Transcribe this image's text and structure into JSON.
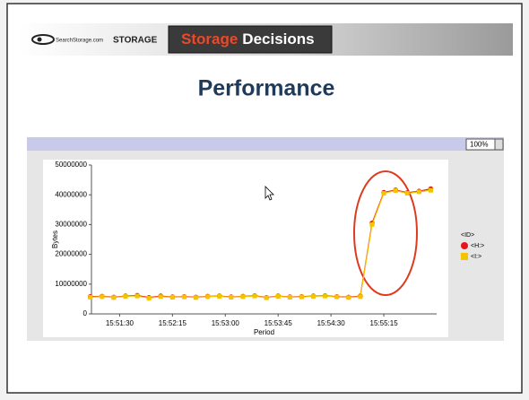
{
  "header": {
    "logo_small": "SearchStorage.com",
    "logo": "STORAGE",
    "brand_1": "Storage",
    "brand_2": "Decisions"
  },
  "title": "Performance",
  "zoom": "100%",
  "chart_data": {
    "type": "line",
    "xlabel": "Period",
    "ylabel": "Bytes",
    "legend_title": "<ID>",
    "legend": "right",
    "x": [
      "15:51:05",
      "15:51:15",
      "15:51:25",
      "15:51:35",
      "15:51:45",
      "15:51:55",
      "15:52:05",
      "15:52:15",
      "15:52:25",
      "15:52:35",
      "15:52:45",
      "15:52:55",
      "15:53:05",
      "15:53:15",
      "15:53:25",
      "15:53:35",
      "15:53:45",
      "15:53:55",
      "15:54:05",
      "15:54:15",
      "15:54:25",
      "15:54:35",
      "15:54:45",
      "15:54:55",
      "15:55:05",
      "15:55:15",
      "15:55:25",
      "15:55:35",
      "15:55:45",
      "15:55:55"
    ],
    "series": [
      {
        "name": "<H:>",
        "color": "#e8141c",
        "marker": "circle",
        "values": [
          5800000,
          5900000,
          5600000,
          6000000,
          6200000,
          5500000,
          6000000,
          5700000,
          5800000,
          5600000,
          5900000,
          6000000,
          5700000,
          5900000,
          6100000,
          5500000,
          6000000,
          5700000,
          5800000,
          6000000,
          6100000,
          5800000,
          5600000,
          6000000,
          30500000,
          40800000,
          41600000,
          40700000,
          41200000,
          42000000
        ]
      },
      {
        "name": "<I:>",
        "color": "#f5c400",
        "marker": "square",
        "values": [
          5600000,
          5800000,
          5500000,
          5900000,
          6000000,
          5300000,
          5800000,
          5600000,
          5700000,
          5500000,
          5800000,
          5900000,
          5600000,
          5800000,
          6000000,
          5400000,
          5900000,
          5600000,
          5700000,
          5900000,
          6000000,
          5700000,
          5500000,
          5800000,
          30000000,
          40500000,
          41400000,
          40500000,
          41000000,
          41500000
        ]
      }
    ],
    "xlim": [
      "15:51:06",
      "15:56:00"
    ],
    "xticks": [
      "15:51:30",
      "15:52:15",
      "15:53:00",
      "15:53:45",
      "15:54:30",
      "15:55:15"
    ],
    "ylim": [
      0,
      50000000
    ],
    "yticks": [
      0,
      10000000,
      20000000,
      30000000,
      40000000,
      50000000
    ]
  }
}
